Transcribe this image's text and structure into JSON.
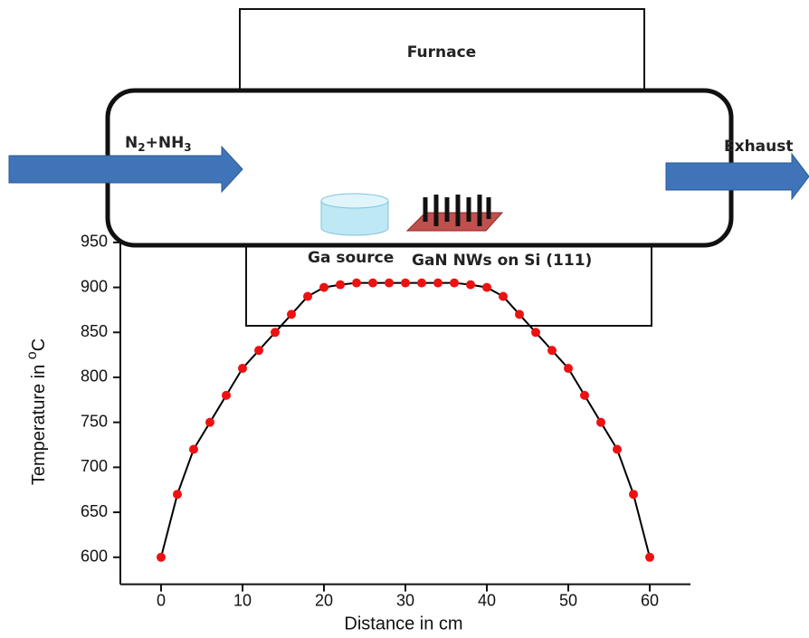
{
  "chart_data": {
    "type": "line",
    "x_label": "Distance in cm",
    "y_label": {
      "text": "Temperature in ",
      "superscript": "o",
      "unit": "C"
    },
    "x": [
      0,
      2,
      4,
      6,
      8,
      10,
      12,
      14,
      16,
      18,
      20,
      22,
      24,
      26,
      28,
      30,
      32,
      34,
      36,
      38,
      40,
      42,
      44,
      46,
      48,
      50,
      52,
      54,
      56,
      58,
      60
    ],
    "values": [
      600,
      670,
      720,
      750,
      780,
      810,
      830,
      850,
      870,
      890,
      900,
      903,
      905,
      905,
      905,
      905,
      905,
      905,
      905,
      903,
      900,
      890,
      870,
      850,
      830,
      810,
      780,
      750,
      720,
      670,
      600
    ],
    "line_color": "#000000",
    "marker_color": "#ee1111",
    "xlim": [
      -5,
      65
    ],
    "xticks": [
      0,
      10,
      20,
      30,
      40,
      50,
      60
    ],
    "ylim": [
      570,
      970
    ],
    "yticks": [
      600,
      650,
      700,
      750,
      800,
      850,
      900,
      950
    ]
  },
  "diagram": {
    "furnace": "Furnace",
    "inlet": [
      "N",
      "2",
      "+NH",
      "3"
    ],
    "outlet": "Exhaust",
    "source": "Ga source",
    "substrate": "GaN NWs on Si (111)"
  }
}
